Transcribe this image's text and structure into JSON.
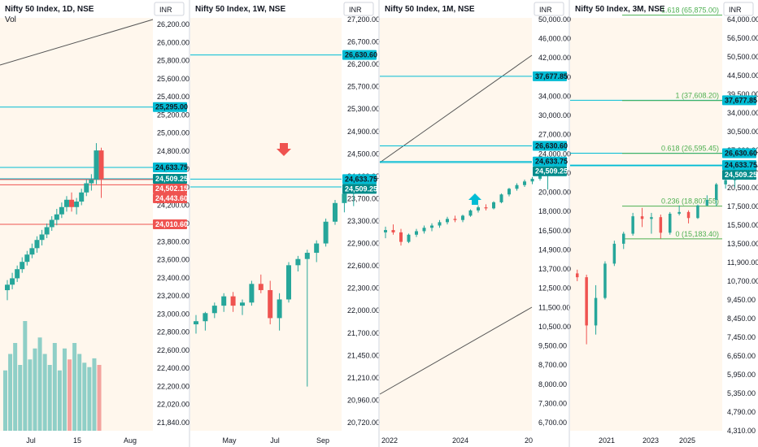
{
  "colors": {
    "up": "#26a69a",
    "down": "#ef5350",
    "level": "#00bcd4",
    "trend": "#555555",
    "fib": "#4caf50",
    "bg_tint": "#fff7ed",
    "vol_up": "#8fcfc7",
    "vol_down": "#f3a39f"
  },
  "panels": [
    {
      "title": "Nifty 50 Index, 1D, NSE",
      "subtitle": "Vol",
      "currency": "INR",
      "y_ticks": [
        "26,200.00",
        "26,000.00",
        "25,800.00",
        "25,600.00",
        "25,400.00",
        "25,200.00",
        "25,000.00",
        "24,800.00",
        "24,600.00",
        "24,400.00",
        "24,200.00",
        "24,000.00",
        "23,800.00",
        "23,600.00",
        "23,400.00",
        "23,200.00",
        "23,000.00",
        "22,800.00",
        "22,600.00",
        "22,400.00",
        "22,200.00",
        "22,020.00",
        "21,840.00"
      ],
      "x_ticks": [
        "Jul",
        "15",
        "Aug"
      ],
      "tags": [
        {
          "text": "25,295.00",
          "kind": "level"
        },
        {
          "text": "24,633.75",
          "kind": "level"
        },
        {
          "text": "24,509.25",
          "kind": "last"
        },
        {
          "text": "24,502.15",
          "kind": "down"
        },
        {
          "text": "24,443.60",
          "kind": "down"
        },
        {
          "text": "24,010.60",
          "kind": "down"
        }
      ]
    },
    {
      "title": "Nifty 50 Index, 1W, NSE",
      "currency": "INR",
      "y_ticks": [
        "27,200.00",
        "26,700.00",
        "26,200.00",
        "25,700.00",
        "25,300.00",
        "24,900.00",
        "24,500.00",
        "24,100.00",
        "23,700.00",
        "23,300.00",
        "22,900.00",
        "22,600.00",
        "22,300.00",
        "22,000.00",
        "21,700.00",
        "21,450.00",
        "21,210.00",
        "20,960.00",
        "20,720.00"
      ],
      "x_ticks": [
        "May",
        "Jul",
        "Sep"
      ],
      "tags": [
        {
          "text": "26,630.60",
          "kind": "level"
        },
        {
          "text": "24,633.75",
          "kind": "level"
        },
        {
          "text": "24,509.25",
          "kind": "last"
        }
      ]
    },
    {
      "title": "Nifty 50 Index, 1M, NSE",
      "currency": "INR",
      "y_ticks": [
        "50,000.00",
        "46,000.00",
        "42,000.00",
        "38,000.00",
        "34,000.00",
        "30,000.00",
        "27,000.00",
        "24,000.00",
        "22,000.00",
        "20,000.00",
        "18,000.00",
        "16,500.00",
        "14,900.00",
        "13,700.00",
        "12,500.00",
        "11,500.00",
        "10,500.00",
        "9,500.00",
        "8,700.00",
        "8,000.00",
        "7,300.00",
        "6,700.00"
      ],
      "x_ticks": [
        "2022",
        "2024",
        "20"
      ],
      "tags": [
        {
          "text": "37,677.85",
          "kind": "level"
        },
        {
          "text": "26,630.60",
          "kind": "level"
        },
        {
          "text": "24,633.75",
          "kind": "level"
        },
        {
          "text": "24,509.25",
          "kind": "last"
        }
      ]
    },
    {
      "title": "Nifty 50 Index, 3M, NSE",
      "currency": "INR",
      "y_ticks": [
        "64,000.00",
        "56,500.00",
        "50,500.00",
        "44,500.00",
        "39,500.00",
        "34,000.00",
        "30,500.00",
        "27,000.00",
        "23,500.00",
        "20,500.00",
        "17,500.00",
        "15,500.00",
        "13,500.00",
        "11,900.00",
        "10,700.00",
        "9,450.00",
        "8,450.00",
        "7,450.00",
        "6,650.00",
        "5,950.00",
        "5,350.00",
        "4,790.00",
        "4,310.00"
      ],
      "x_ticks": [
        "2021",
        "2023",
        "2025"
      ],
      "tags": [
        {
          "text": "37,677.85",
          "kind": "level"
        },
        {
          "text": "26,630.60",
          "kind": "level"
        },
        {
          "text": "24,633.75",
          "kind": "level"
        },
        {
          "text": "24,509.25",
          "kind": "last"
        }
      ],
      "fib_labels": [
        "1.618 (65,875.00)",
        "1 (37,608.20)",
        "0.618 (26,595.45)",
        "0.236 (18,807.55)",
        "0 (15,183.40)"
      ]
    }
  ],
  "chart_data": [
    {
      "type": "candlestick",
      "title": "Nifty 50 Index, 1D, NSE",
      "interval": "1D",
      "ohlc": [
        [
          23290,
          23400,
          23180,
          23350
        ],
        [
          23350,
          23480,
          23300,
          23420
        ],
        [
          23420,
          23560,
          23380,
          23520
        ],
        [
          23520,
          23650,
          23480,
          23600
        ],
        [
          23600,
          23720,
          23560,
          23680
        ],
        [
          23680,
          23800,
          23640,
          23750
        ],
        [
          23750,
          23880,
          23700,
          23840
        ],
        [
          23840,
          23950,
          23780,
          23900
        ],
        [
          23900,
          24020,
          23860,
          23980
        ],
        [
          23980,
          24100,
          23940,
          24060
        ],
        [
          24060,
          24180,
          24000,
          24120
        ],
        [
          24120,
          24250,
          24080,
          24200
        ],
        [
          24200,
          24320,
          24150,
          24280
        ],
        [
          24280,
          24360,
          24150,
          24200
        ],
        [
          24200,
          24300,
          24120,
          24260
        ],
        [
          24260,
          24400,
          24220,
          24360
        ],
        [
          24360,
          24500,
          24320,
          24460
        ],
        [
          24460,
          24560,
          24380,
          24500
        ],
        [
          24500,
          24900,
          24450,
          24820
        ],
        [
          24820,
          24850,
          24300,
          24509
        ]
      ],
      "levels": [
        25295.0,
        24633.75,
        24502.15,
        24443.6,
        24010.6
      ],
      "last": 24509.25,
      "volume_shown": true
    },
    {
      "type": "candlestick",
      "title": "Nifty 50 Index, 1W, NSE",
      "interval": "1W",
      "ohlc": [
        [
          22300,
          22450,
          22150,
          22350
        ],
        [
          22350,
          22500,
          22200,
          22480
        ],
        [
          22480,
          22650,
          22400,
          22600
        ],
        [
          22600,
          22800,
          22500,
          22750
        ],
        [
          22750,
          22820,
          22500,
          22600
        ],
        [
          22600,
          22700,
          22450,
          22650
        ],
        [
          22650,
          23000,
          22600,
          22950
        ],
        [
          22950,
          23100,
          22800,
          22850
        ],
        [
          22850,
          23000,
          22300,
          22400
        ],
        [
          22400,
          22800,
          22200,
          22700
        ],
        [
          22700,
          23300,
          22650,
          23250
        ],
        [
          23250,
          23400,
          23150,
          23350
        ],
        [
          23350,
          23500,
          21300,
          23450
        ],
        [
          23450,
          23650,
          23300,
          23600
        ],
        [
          23600,
          24000,
          23550,
          23950
        ],
        [
          23950,
          24300,
          23900,
          24250
        ],
        [
          24250,
          24450,
          24100,
          24400
        ],
        [
          24400,
          24600,
          24200,
          24550
        ],
        [
          24550,
          24700,
          24450,
          24500
        ],
        [
          24500,
          24600,
          24400,
          24509
        ]
      ],
      "levels": [
        26630.6,
        24633.75
      ],
      "last": 24509.25
    },
    {
      "type": "candlestick",
      "title": "Nifty 50 Index, 1M, NSE",
      "interval": "1M",
      "ohlc": [
        [
          17300,
          17800,
          16800,
          17500
        ],
        [
          17500,
          18000,
          17100,
          17300
        ],
        [
          17300,
          17600,
          16200,
          16500
        ],
        [
          16500,
          17200,
          16400,
          17100
        ],
        [
          17100,
          17600,
          16900,
          17400
        ],
        [
          17400,
          17900,
          17200,
          17700
        ],
        [
          17700,
          18100,
          17400,
          17900
        ],
        [
          17900,
          18400,
          17700,
          18200
        ],
        [
          18200,
          18700,
          18000,
          18500
        ],
        [
          18500,
          18800,
          18200,
          18400
        ],
        [
          18400,
          18900,
          18200,
          18800
        ],
        [
          18800,
          19400,
          18700,
          19300
        ],
        [
          19300,
          19800,
          19100,
          19600
        ],
        [
          19600,
          19900,
          19300,
          19500
        ],
        [
          19500,
          20200,
          19400,
          20100
        ],
        [
          20100,
          21000,
          20000,
          20900
        ],
        [
          20900,
          21600,
          20700,
          21500
        ],
        [
          21500,
          22100,
          21300,
          21900
        ],
        [
          21900,
          22500,
          21700,
          22300
        ],
        [
          22300,
          22800,
          22000,
          22600
        ],
        [
          22600,
          23300,
          22400,
          23200
        ],
        [
          23200,
          24000,
          21400,
          23800
        ],
        [
          23800,
          24300,
          23600,
          24200
        ],
        [
          24200,
          24600,
          24000,
          24509
        ]
      ],
      "levels": [
        37677.85,
        26630.6,
        24633.75
      ],
      "last": 24509.25
    },
    {
      "type": "candlestick",
      "title": "Nifty 50 Index, 3M, NSE",
      "interval": "3M",
      "ohlc": [
        [
          12100,
          12400,
          11500,
          11800
        ],
        [
          11800,
          12000,
          7600,
          8600
        ],
        [
          8600,
          11200,
          8100,
          10300
        ],
        [
          10300,
          13100,
          10200,
          12900
        ],
        [
          12900,
          15000,
          12700,
          14700
        ],
        [
          14700,
          15900,
          14200,
          15700
        ],
        [
          15700,
          18000,
          15500,
          17600
        ],
        [
          17600,
          18600,
          16400,
          17300
        ],
        [
          17300,
          18000,
          15700,
          17500
        ],
        [
          17500,
          17800,
          15200,
          15800
        ],
        [
          15800,
          18100,
          15600,
          17900
        ],
        [
          17900,
          18900,
          17700,
          18100
        ],
        [
          18100,
          18300,
          16800,
          17400
        ],
        [
          17400,
          19000,
          17300,
          18900
        ],
        [
          18900,
          20200,
          18800,
          19600
        ],
        [
          19600,
          21900,
          18800,
          21700
        ],
        [
          21700,
          22800,
          21100,
          22300
        ],
        [
          22300,
          24200,
          21300,
          24000
        ],
        [
          24000,
          24600,
          23800,
          24509
        ]
      ],
      "levels": [
        37677.85,
        26630.6,
        24633.75
      ],
      "last": 24509.25,
      "fib_levels": [
        {
          "ratio": "1.618",
          "value": 65875.0
        },
        {
          "ratio": "1",
          "value": 37608.2
        },
        {
          "ratio": "0.618",
          "value": 26595.45
        },
        {
          "ratio": "0.236",
          "value": 18807.55
        },
        {
          "ratio": "0",
          "value": 15183.4
        }
      ]
    }
  ]
}
